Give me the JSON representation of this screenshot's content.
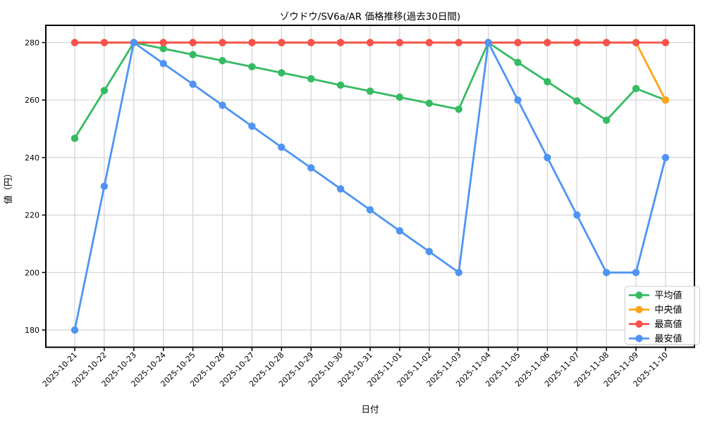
{
  "chart_data": {
    "type": "line",
    "title": "ゾウドウ/SV6a/AR 価格推移(過去30日間)",
    "xlabel": "日付",
    "ylabel": "値（円）",
    "grid": true,
    "legend_position": "lower right",
    "ylim": [
      174,
      286
    ],
    "yticks": [
      180,
      200,
      220,
      240,
      260,
      280
    ],
    "categories": [
      "2025-10-21",
      "2025-10-22",
      "2025-10-23",
      "2025-10-24",
      "2025-10-25",
      "2025-10-26",
      "2025-10-27",
      "2025-10-28",
      "2025-10-29",
      "2025-10-30",
      "2025-10-31",
      "2025-11-01",
      "2025-11-02",
      "2025-11-03",
      "2025-11-04",
      "2025-11-05",
      "2025-11-06",
      "2025-11-07",
      "2025-11-08",
      "2025-11-09",
      "2025-11-10"
    ],
    "series": [
      {
        "name": "平均値",
        "color": "#35bb62",
        "values": [
          246.7,
          263.3,
          280,
          277.9,
          275.8,
          273.7,
          271.6,
          269.5,
          267.4,
          265.2,
          263.1,
          261.0,
          258.9,
          256.8,
          280,
          273.1,
          266.4,
          259.7,
          253.0,
          264.0,
          260
        ]
      },
      {
        "name": "中央値",
        "color": "#ffa419",
        "values": [
          280,
          280,
          280,
          280,
          280,
          280,
          280,
          280,
          280,
          280,
          280,
          280,
          280,
          280,
          280,
          280,
          280,
          280,
          280,
          280,
          260
        ]
      },
      {
        "name": "最高値",
        "color": "#f8514c",
        "values": [
          280,
          280,
          280,
          280,
          280,
          280,
          280,
          280,
          280,
          280,
          280,
          280,
          280,
          280,
          280,
          280,
          280,
          280,
          280,
          280,
          280
        ]
      },
      {
        "name": "最安値",
        "color": "#4f94f4",
        "values": [
          180,
          230,
          280,
          272.7,
          265.5,
          258.2,
          250.9,
          243.6,
          236.4,
          229.1,
          221.8,
          214.5,
          207.3,
          200,
          280,
          260,
          240,
          220,
          200,
          200,
          240
        ]
      }
    ]
  }
}
